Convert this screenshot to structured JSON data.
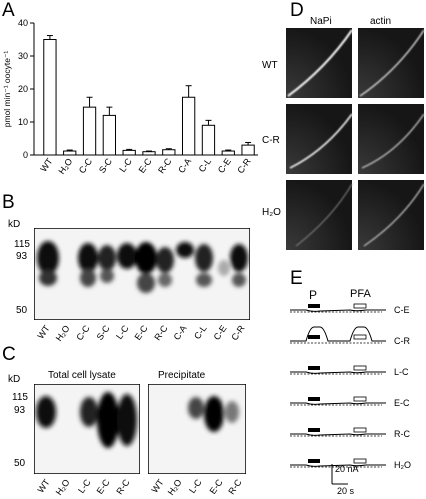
{
  "panels": {
    "a": "A",
    "b": "B",
    "c": "C",
    "d": "D",
    "e": "E"
  },
  "chart_data": {
    "type": "bar",
    "ylabel": "pmol min⁻¹ oocyte⁻¹",
    "ylim": [
      0,
      40
    ],
    "yticks": [
      0,
      10,
      20,
      30,
      40
    ],
    "categories": [
      "WT",
      "H₂O",
      "C-C",
      "S-C",
      "L-C",
      "E-C",
      "R-C",
      "C-A",
      "C-L",
      "C-E",
      "C-R"
    ],
    "values": [
      35,
      1.2,
      14.5,
      12,
      1.4,
      1,
      1.6,
      17.5,
      9,
      1.2,
      3
    ],
    "errors": [
      1.2,
      0.3,
      3,
      2.5,
      0.3,
      0.2,
      0.3,
      3.5,
      1.5,
      0.3,
      0.8
    ]
  },
  "blotB": {
    "kd": "kD",
    "markers": [
      "115",
      "93",
      "50"
    ],
    "lanes": [
      "WT",
      "H₂O",
      "C-C",
      "S-C",
      "L-C",
      "E-C",
      "R-C",
      "C-A",
      "C-L",
      "C-E",
      "C-R"
    ]
  },
  "blotC": {
    "kd": "kD",
    "markers": [
      "115",
      "93",
      "50"
    ],
    "left_title": "Total cell lysate",
    "right_title": "Precipitate",
    "lanes": [
      "WT",
      "H₂O",
      "L-C",
      "E-C",
      "R-C"
    ]
  },
  "panelD": {
    "columns": [
      "NaPi",
      "actin"
    ],
    "rows": [
      "WT",
      "C-R",
      "H₂O"
    ]
  },
  "panelE": {
    "headers": [
      "P",
      "PFA"
    ],
    "traces": [
      "C-E",
      "C-R",
      "L-C",
      "E-C",
      "R-C",
      "H₂O"
    ],
    "scale_current": "20 nA",
    "scale_time": "20 s"
  },
  "colors": {
    "ink": "#000000",
    "blot_bg": "#f4f4f4",
    "micro_bg": "#1a1a1a"
  }
}
